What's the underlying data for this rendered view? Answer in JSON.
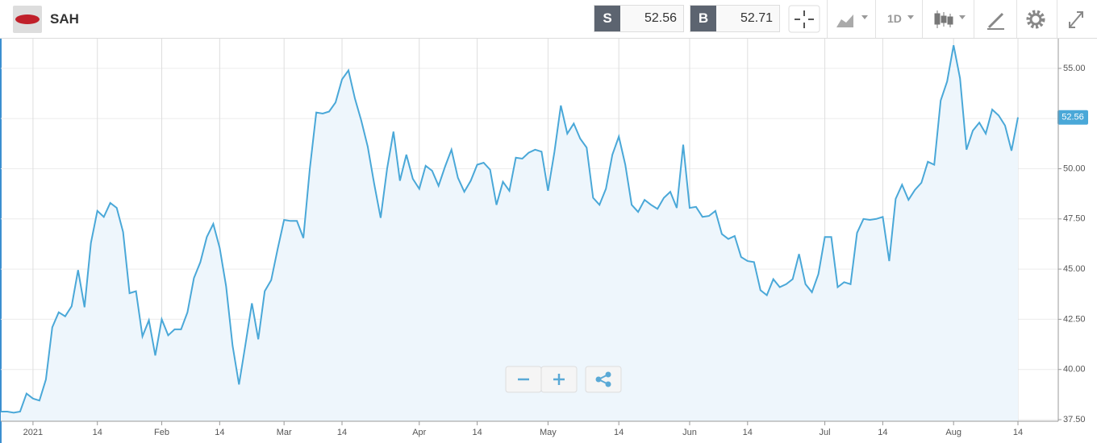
{
  "header": {
    "symbol": "SAH",
    "sell_label": "S",
    "sell": "52.56",
    "buy_label": "B",
    "buy": "52.71",
    "timeframe": "1D"
  },
  "chart_data": {
    "type": "area",
    "color": "#4aa8d8",
    "fill_color": "#eef6fc",
    "grid": true,
    "categories": [
      null,
      null,
      null,
      null,
      null,
      "2021",
      null,
      null,
      null,
      null,
      null,
      null,
      null,
      null,
      null,
      "14",
      null,
      null,
      null,
      null,
      null,
      null,
      null,
      null,
      null,
      "Feb",
      null,
      null,
      null,
      null,
      null,
      null,
      null,
      null,
      "14",
      null,
      null,
      null,
      null,
      null,
      null,
      null,
      null,
      null,
      "Mar",
      null,
      null,
      null,
      null,
      null,
      null,
      null,
      null,
      "14",
      null,
      null,
      null,
      null,
      null,
      null,
      null,
      null,
      null,
      null,
      null,
      "Apr",
      null,
      null,
      null,
      null,
      null,
      null,
      null,
      null,
      "14",
      null,
      null,
      null,
      null,
      null,
      null,
      null,
      null,
      null,
      null,
      "May",
      null,
      null,
      null,
      null,
      null,
      null,
      null,
      null,
      null,
      null,
      "14",
      null,
      null,
      null,
      null,
      null,
      null,
      null,
      null,
      null,
      null,
      "Jun",
      null,
      null,
      null,
      null,
      null,
      null,
      null,
      null,
      "14",
      null,
      null,
      null,
      null,
      null,
      null,
      null,
      null,
      null,
      null,
      null,
      "Jul",
      null,
      null,
      null,
      null,
      null,
      null,
      null,
      null,
      "14",
      null,
      null,
      null,
      null,
      null,
      null,
      null,
      null,
      null,
      null,
      "Aug",
      null,
      null,
      null,
      null,
      null,
      null,
      null,
      null,
      null,
      "14"
    ],
    "values": [
      37.9,
      37.9,
      37.85,
      37.9,
      38.8,
      38.55,
      38.45,
      39.5,
      42.1,
      42.85,
      42.65,
      43.15,
      44.95,
      43.1,
      46.3,
      47.9,
      47.6,
      48.3,
      48.05,
      46.85,
      43.8,
      43.9,
      41.65,
      42.45,
      40.7,
      42.5,
      41.7,
      42.0,
      42.0,
      42.85,
      44.55,
      45.35,
      46.6,
      47.25,
      46.05,
      44.15,
      41.2,
      39.25,
      41.25,
      43.3,
      41.5,
      43.9,
      44.45,
      46.0,
      47.45,
      47.4,
      47.4,
      46.55,
      50.0,
      52.8,
      52.75,
      52.85,
      53.3,
      54.45,
      54.9,
      53.5,
      52.4,
      51.1,
      49.25,
      47.55,
      50.0,
      51.85,
      49.4,
      50.7,
      49.5,
      49.0,
      50.15,
      49.9,
      49.15,
      50.1,
      50.95,
      49.55,
      48.85,
      49.4,
      50.2,
      50.3,
      49.95,
      48.2,
      49.35,
      48.9,
      50.55,
      50.5,
      50.8,
      50.95,
      50.85,
      48.9,
      50.85,
      53.15,
      51.75,
      52.25,
      51.5,
      51.05,
      48.55,
      48.2,
      49.0,
      50.7,
      51.6,
      50.2,
      48.2,
      47.85,
      48.45,
      48.2,
      48.0,
      48.55,
      48.85,
      48.05,
      51.2,
      48.05,
      48.1,
      47.6,
      47.65,
      47.9,
      46.75,
      46.5,
      46.65,
      45.6,
      45.4,
      45.35,
      43.95,
      43.7,
      44.5,
      44.1,
      44.25,
      44.5,
      45.75,
      44.25,
      43.85,
      44.75,
      46.6,
      46.6,
      44.1,
      44.35,
      44.25,
      46.8,
      47.5,
      47.45,
      47.5,
      47.6,
      45.4,
      48.5,
      49.2,
      48.45,
      48.95,
      49.3,
      50.35,
      50.2,
      53.4,
      54.35,
      56.15,
      54.5,
      50.95,
      51.9,
      52.3,
      51.75,
      52.95,
      52.65,
      52.15,
      50.9,
      52.56
    ],
    "ylim": [
      37.42,
      56.48
    ],
    "yticks": [
      {
        "value": 37.5,
        "label": "37.50"
      },
      {
        "value": 40,
        "label": "40.00"
      },
      {
        "value": 42.5,
        "label": "42.50"
      },
      {
        "value": 45,
        "label": "45.00"
      },
      {
        "value": 47.5,
        "label": "47.50"
      },
      {
        "value": 50,
        "label": "50.00"
      },
      {
        "value": 52.5,
        "label": "52.50"
      },
      {
        "value": 55,
        "label": "55.00"
      }
    ]
  }
}
